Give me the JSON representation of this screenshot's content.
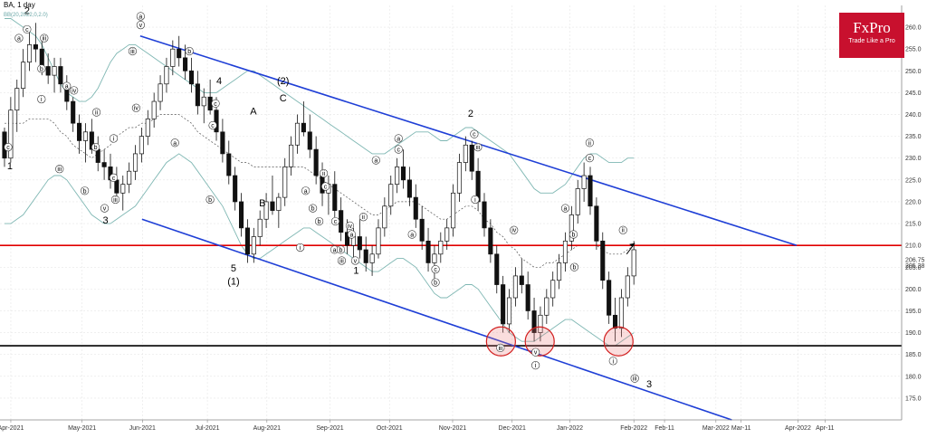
{
  "header": {
    "symbol": "BA, 1 day",
    "indicator": "BB(20,2022,0,2.0)"
  },
  "logo": {
    "brand": "FxPro",
    "tagline": "Trade Like a Pro",
    "color": "#c8102e"
  },
  "chart_data": {
    "type": "candlestick",
    "ylim": [
      170,
      265
    ],
    "y_ticks": [
      175,
      180,
      185,
      190,
      195,
      200,
      205,
      210,
      215,
      220,
      225,
      230,
      235,
      240,
      245,
      250,
      255,
      260
    ],
    "x_ticks": [
      "Apr-2021",
      "May-2021",
      "Jun-2021",
      "Jul-2021",
      "Aug-2021",
      "Sep-2021",
      "Oct-2021",
      "Nov-2021",
      "Dec-2021",
      "Jan-2022",
      "Feb-2022",
      "Feb-11",
      "Mar-2022",
      "Mar-11",
      "Apr-2022",
      "Apr-11"
    ],
    "price_labels": {
      "upper": "206.75",
      "lower": "205.38"
    },
    "candles": [
      [
        236,
        237,
        228,
        230
      ],
      [
        230,
        244,
        229,
        241
      ],
      [
        241,
        248,
        236,
        246
      ],
      [
        246,
        255,
        244,
        252
      ],
      [
        252,
        259,
        250,
        256
      ],
      [
        256,
        261,
        252,
        255
      ],
      [
        255,
        257,
        249,
        251
      ],
      [
        251,
        254,
        247,
        249
      ],
      [
        249,
        253,
        245,
        251
      ],
      [
        251,
        253,
        245,
        247
      ],
      [
        247,
        249,
        241,
        243
      ],
      [
        243,
        244,
        236,
        238
      ],
      [
        238,
        240,
        231,
        234
      ],
      [
        234,
        238,
        229,
        236
      ],
      [
        236,
        239,
        231,
        232
      ],
      [
        232,
        235,
        227,
        229
      ],
      [
        229,
        232,
        225,
        228
      ],
      [
        228,
        231,
        223,
        225
      ],
      [
        225,
        228,
        220,
        222
      ],
      [
        222,
        226,
        218,
        224
      ],
      [
        224,
        229,
        222,
        227
      ],
      [
        227,
        233,
        225,
        231
      ],
      [
        231,
        237,
        229,
        235
      ],
      [
        235,
        241,
        233,
        239
      ],
      [
        239,
        245,
        237,
        243
      ],
      [
        243,
        249,
        241,
        247
      ],
      [
        247,
        253,
        245,
        251
      ],
      [
        251,
        257,
        249,
        255
      ],
      [
        255,
        258,
        251,
        253
      ],
      [
        253,
        256,
        248,
        250
      ],
      [
        250,
        253,
        245,
        247
      ],
      [
        247,
        250,
        240,
        242
      ],
      [
        242,
        246,
        238,
        244
      ],
      [
        244,
        248,
        240,
        241
      ],
      [
        241,
        244,
        234,
        236
      ],
      [
        236,
        239,
        229,
        231
      ],
      [
        231,
        234,
        224,
        226
      ],
      [
        226,
        228,
        218,
        220
      ],
      [
        220,
        222,
        212,
        214
      ],
      [
        214,
        216,
        206,
        208
      ],
      [
        208,
        214,
        206,
        212
      ],
      [
        212,
        218,
        210,
        216
      ],
      [
        216,
        222,
        214,
        220
      ],
      [
        220,
        226,
        217,
        218
      ],
      [
        218,
        222,
        214,
        221
      ],
      [
        221,
        230,
        219,
        228
      ],
      [
        228,
        235,
        226,
        233
      ],
      [
        233,
        240,
        231,
        238
      ],
      [
        238,
        243,
        235,
        236
      ],
      [
        236,
        240,
        230,
        232
      ],
      [
        232,
        235,
        224,
        226
      ],
      [
        226,
        229,
        219,
        222
      ],
      [
        222,
        226,
        217,
        224
      ],
      [
        224,
        227,
        216,
        218
      ],
      [
        218,
        221,
        211,
        213
      ],
      [
        213,
        216,
        208,
        210
      ],
      [
        210,
        214,
        206,
        212
      ],
      [
        212,
        216,
        207,
        209
      ],
      [
        209,
        212,
        204,
        206
      ],
      [
        206,
        210,
        203,
        208
      ],
      [
        208,
        216,
        207,
        214
      ],
      [
        214,
        221,
        212,
        219
      ],
      [
        219,
        226,
        217,
        224
      ],
      [
        224,
        230,
        222,
        228
      ],
      [
        228,
        232,
        223,
        225
      ],
      [
        225,
        228,
        219,
        221
      ],
      [
        221,
        224,
        214,
        216
      ],
      [
        216,
        219,
        209,
        211
      ],
      [
        211,
        214,
        204,
        206
      ],
      [
        206,
        210,
        202,
        208
      ],
      [
        208,
        213,
        206,
        211
      ],
      [
        211,
        216,
        209,
        214
      ],
      [
        214,
        224,
        212,
        222
      ],
      [
        222,
        231,
        220,
        229
      ],
      [
        229,
        235,
        227,
        233
      ],
      [
        233,
        234,
        225,
        227
      ],
      [
        227,
        230,
        218,
        220
      ],
      [
        220,
        222,
        212,
        214
      ],
      [
        214,
        216,
        206,
        208
      ],
      [
        208,
        210,
        199,
        201
      ],
      [
        201,
        203,
        190,
        192
      ],
      [
        192,
        200,
        190,
        198
      ],
      [
        198,
        205,
        196,
        203
      ],
      [
        203,
        207,
        199,
        201
      ],
      [
        201,
        204,
        193,
        195
      ],
      [
        195,
        198,
        188,
        190
      ],
      [
        190,
        196,
        188,
        194
      ],
      [
        194,
        200,
        192,
        198
      ],
      [
        198,
        204,
        196,
        202
      ],
      [
        202,
        208,
        200,
        206
      ],
      [
        206,
        213,
        204,
        211
      ],
      [
        211,
        219,
        209,
        217
      ],
      [
        217,
        225,
        215,
        223
      ],
      [
        223,
        229,
        220,
        226
      ],
      [
        226,
        228,
        217,
        219
      ],
      [
        219,
        221,
        209,
        211
      ],
      [
        211,
        213,
        200,
        202
      ],
      [
        202,
        204,
        192,
        194
      ],
      [
        194,
        198,
        188,
        191
      ],
      [
        191,
        200,
        189,
        198
      ],
      [
        198,
        205,
        196,
        203
      ],
      [
        203,
        211,
        201,
        209
      ]
    ],
    "bb_upper": [
      262,
      262,
      261,
      260,
      259,
      258,
      256,
      253,
      250,
      247,
      245,
      244,
      243,
      243,
      244,
      246,
      249,
      252,
      254,
      255,
      256,
      256,
      255,
      254,
      253,
      252,
      251,
      250,
      249,
      248,
      247,
      246,
      245,
      245,
      245,
      246,
      247,
      248,
      249,
      250,
      250,
      249,
      248,
      247,
      246,
      245,
      244,
      243,
      242,
      241,
      240,
      239,
      238,
      237,
      236,
      235,
      234,
      233,
      232,
      231,
      231,
      231,
      232,
      233,
      234,
      235,
      236,
      236,
      236,
      235,
      234,
      234,
      235,
      236,
      237,
      237,
      236,
      235,
      234,
      233,
      232,
      231,
      229,
      227,
      225,
      223,
      222,
      222,
      222,
      223,
      224,
      226,
      228,
      230,
      231,
      231,
      230,
      229,
      229,
      229,
      230,
      230
    ],
    "bb_lower": [
      215,
      215,
      216,
      217,
      219,
      221,
      223,
      225,
      226,
      226,
      225,
      223,
      221,
      219,
      217,
      216,
      215,
      215,
      216,
      217,
      218,
      219,
      221,
      223,
      225,
      227,
      229,
      230,
      231,
      230,
      229,
      227,
      225,
      223,
      221,
      219,
      216,
      213,
      210,
      208,
      207,
      207,
      208,
      209,
      210,
      211,
      212,
      213,
      214,
      214,
      213,
      212,
      211,
      210,
      209,
      208,
      207,
      206,
      205,
      204,
      204,
      205,
      206,
      207,
      207,
      206,
      205,
      203,
      201,
      199,
      198,
      198,
      199,
      200,
      201,
      201,
      200,
      198,
      196,
      194,
      192,
      190,
      189,
      188,
      188,
      188,
      189,
      190,
      191,
      192,
      193,
      193,
      192,
      191,
      190,
      189,
      188,
      187,
      187,
      188,
      189,
      190
    ],
    "bb_mid": [
      238,
      238,
      238,
      238,
      239,
      239,
      239,
      239,
      238,
      236,
      235,
      233,
      232,
      231,
      230,
      231,
      232,
      233,
      235,
      236,
      237,
      237,
      238,
      238,
      239,
      240,
      240,
      240,
      240,
      239,
      238,
      236,
      235,
      234,
      233,
      232,
      231,
      230,
      229,
      229,
      228,
      228,
      228,
      228,
      228,
      228,
      228,
      228,
      228,
      227,
      226,
      225,
      224,
      223,
      222,
      221,
      220,
      219,
      218,
      217,
      217,
      218,
      219,
      220,
      220,
      220,
      220,
      219,
      218,
      217,
      216,
      216,
      217,
      218,
      219,
      219,
      218,
      216,
      215,
      213,
      212,
      210,
      209,
      207,
      206,
      205,
      205,
      206,
      206,
      207,
      208,
      209,
      210,
      210,
      210,
      210,
      209,
      208,
      208,
      208,
      209,
      210
    ],
    "horizontal_levels": [
      {
        "value": 210,
        "color": "#e00000"
      },
      {
        "value": 187,
        "color": "#000000"
      }
    ],
    "channel_lines": [
      {
        "from": [
          0.1555,
          258
        ],
        "to": [
          0.8835,
          210
        ],
        "color": "#1f3fd6"
      },
      {
        "from": [
          0.1575,
          216
        ],
        "to": [
          0.8116,
          170
        ],
        "color": "#1f3fd6"
      }
    ],
    "circles": [
      {
        "x": 0.5556,
        "y": 188
      },
      {
        "x": 0.5986,
        "y": 188
      },
      {
        "x": 0.686,
        "y": 188
      }
    ],
    "projection": {
      "from": [
        0.695,
        208
      ],
      "to": [
        0.704,
        210.5
      ]
    },
    "wave_labels": [
      {
        "t": "1",
        "x": 0.011,
        "y": 227.5,
        "size": "big"
      },
      {
        "t": "2",
        "x": 0.03,
        "y": 263,
        "size": "big"
      },
      {
        "t": "3",
        "x": 0.117,
        "y": 215,
        "size": "big"
      },
      {
        "t": "4",
        "x": 0.243,
        "y": 247,
        "size": "big"
      },
      {
        "t": "5",
        "x": 0.259,
        "y": 204,
        "size": "big"
      },
      {
        "t": "(1)",
        "x": 0.259,
        "y": 201,
        "size": "big"
      },
      {
        "t": "A",
        "x": 0.281,
        "y": 240,
        "size": "big"
      },
      {
        "t": "B",
        "x": 0.291,
        "y": 219,
        "size": "big"
      },
      {
        "t": "(2)",
        "x": 0.314,
        "y": 247,
        "size": "big"
      },
      {
        "t": "C",
        "x": 0.314,
        "y": 243,
        "size": "big"
      },
      {
        "t": "1",
        "x": 0.395,
        "y": 203.5,
        "size": "big"
      },
      {
        "t": "2",
        "x": 0.522,
        "y": 239.5,
        "size": "big"
      },
      {
        "t": "3",
        "x": 0.72,
        "y": 177.5,
        "size": "big"
      },
      {
        "t": "c",
        "x": 0.009,
        "y": 232,
        "size": "small"
      },
      {
        "t": "c",
        "x": 0.03,
        "y": 259,
        "size": "small"
      },
      {
        "t": "a",
        "x": 0.021,
        "y": 257,
        "size": "small"
      },
      {
        "t": "iii",
        "x": 0.049,
        "y": 257,
        "size": "small"
      },
      {
        "t": "i",
        "x": 0.046,
        "y": 243,
        "size": "small"
      },
      {
        "t": "b",
        "x": 0.046,
        "y": 250,
        "size": "small"
      },
      {
        "t": "a",
        "x": 0.074,
        "y": 246,
        "size": "small"
      },
      {
        "t": "iv",
        "x": 0.082,
        "y": 245,
        "size": "small"
      },
      {
        "t": "ii",
        "x": 0.107,
        "y": 240,
        "size": "small"
      },
      {
        "t": "iii",
        "x": 0.066,
        "y": 227,
        "size": "small"
      },
      {
        "t": "b",
        "x": 0.094,
        "y": 222,
        "size": "small"
      },
      {
        "t": "b",
        "x": 0.106,
        "y": 232,
        "size": "small"
      },
      {
        "t": "i",
        "x": 0.126,
        "y": 234,
        "size": "small"
      },
      {
        "t": "c",
        "x": 0.126,
        "y": 225,
        "size": "small"
      },
      {
        "t": "v",
        "x": 0.116,
        "y": 218,
        "size": "small"
      },
      {
        "t": "iii",
        "x": 0.128,
        "y": 220,
        "size": "small"
      },
      {
        "t": "a",
        "x": 0.156,
        "y": 262,
        "size": "small"
      },
      {
        "t": "v",
        "x": 0.156,
        "y": 260,
        "size": "small"
      },
      {
        "t": "iii",
        "x": 0.147,
        "y": 254,
        "size": "small"
      },
      {
        "t": "iv",
        "x": 0.151,
        "y": 241,
        "size": "small"
      },
      {
        "t": "b",
        "x": 0.21,
        "y": 254,
        "size": "small"
      },
      {
        "t": "a",
        "x": 0.194,
        "y": 233,
        "size": "small"
      },
      {
        "t": "c",
        "x": 0.236,
        "y": 237,
        "size": "small"
      },
      {
        "t": "c",
        "x": 0.239,
        "y": 242,
        "size": "small"
      },
      {
        "t": "b",
        "x": 0.233,
        "y": 220,
        "size": "small"
      },
      {
        "t": "a",
        "x": 0.339,
        "y": 222,
        "size": "small"
      },
      {
        "t": "b",
        "x": 0.347,
        "y": 218,
        "size": "small"
      },
      {
        "t": "ii",
        "x": 0.359,
        "y": 226,
        "size": "small"
      },
      {
        "t": "c",
        "x": 0.361,
        "y": 223,
        "size": "small"
      },
      {
        "t": "c",
        "x": 0.372,
        "y": 215,
        "size": "small"
      },
      {
        "t": "iv",
        "x": 0.388,
        "y": 214,
        "size": "small"
      },
      {
        "t": "b",
        "x": 0.354,
        "y": 215,
        "size": "small"
      },
      {
        "t": "a",
        "x": 0.39,
        "y": 212,
        "size": "small"
      },
      {
        "t": "a",
        "x": 0.417,
        "y": 229,
        "size": "small"
      },
      {
        "t": "ii",
        "x": 0.403,
        "y": 216,
        "size": "small"
      },
      {
        "t": "i",
        "x": 0.333,
        "y": 209,
        "size": "small"
      },
      {
        "t": "a",
        "x": 0.371,
        "y": 208.5,
        "size": "small"
      },
      {
        "t": "b",
        "x": 0.378,
        "y": 208.5,
        "size": "small"
      },
      {
        "t": "iii",
        "x": 0.379,
        "y": 206,
        "size": "small"
      },
      {
        "t": "v",
        "x": 0.394,
        "y": 206,
        "size": "small"
      },
      {
        "t": "a",
        "x": 0.442,
        "y": 234,
        "size": "small"
      },
      {
        "t": "c",
        "x": 0.442,
        "y": 231.5,
        "size": "small"
      },
      {
        "t": "a",
        "x": 0.457,
        "y": 212,
        "size": "small"
      },
      {
        "t": "c",
        "x": 0.483,
        "y": 204,
        "size": "small"
      },
      {
        "t": "b",
        "x": 0.483,
        "y": 201,
        "size": "small"
      },
      {
        "t": "c",
        "x": 0.526,
        "y": 235,
        "size": "small"
      },
      {
        "t": "iii",
        "x": 0.53,
        "y": 232,
        "size": "small"
      },
      {
        "t": "i",
        "x": 0.527,
        "y": 220,
        "size": "small"
      },
      {
        "t": "iii",
        "x": 0.555,
        "y": 186,
        "size": "small"
      },
      {
        "t": "iv",
        "x": 0.57,
        "y": 213,
        "size": "small"
      },
      {
        "t": "v",
        "x": 0.594,
        "y": 185,
        "size": "small"
      },
      {
        "t": "i",
        "x": 0.594,
        "y": 182,
        "size": "small"
      },
      {
        "t": "a",
        "x": 0.627,
        "y": 218,
        "size": "small"
      },
      {
        "t": "b",
        "x": 0.636,
        "y": 212,
        "size": "small"
      },
      {
        "t": "b",
        "x": 0.637,
        "y": 204.5,
        "size": "small"
      },
      {
        "t": "ii",
        "x": 0.654,
        "y": 233,
        "size": "small"
      },
      {
        "t": "c",
        "x": 0.654,
        "y": 229.5,
        "size": "small"
      },
      {
        "t": "ii",
        "x": 0.691,
        "y": 213,
        "size": "small"
      },
      {
        "t": "i",
        "x": 0.68,
        "y": 183,
        "size": "small"
      },
      {
        "t": "iii",
        "x": 0.704,
        "y": 179,
        "size": "small"
      }
    ]
  }
}
